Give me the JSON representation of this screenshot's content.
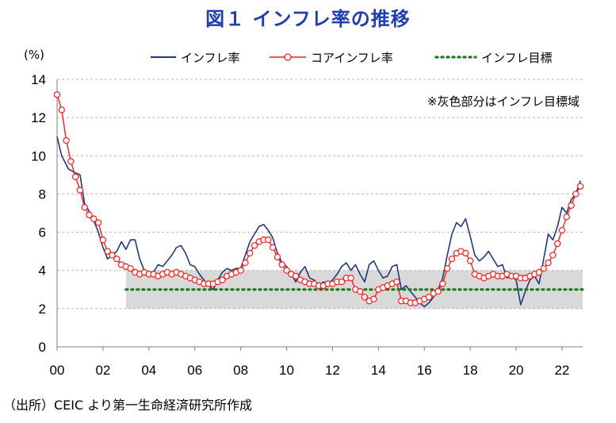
{
  "title": "図１ インフレ率の推移",
  "unit": "(%)",
  "source": "（出所）CEIC より第一生命経済研究所作成",
  "note": "※灰色部分はインフレ目標域",
  "colors": {
    "headline": "#1f3a7a",
    "core": "#ff1a1a",
    "target": "#1a7a1a",
    "band": "#d9d9d9",
    "title": "#1f3fb0"
  },
  "chart_data": {
    "type": "line",
    "x_unit": "year",
    "xlim": [
      2000,
      2022.9
    ],
    "ylim": [
      0,
      14
    ],
    "yticks": [
      0,
      2,
      4,
      6,
      8,
      10,
      12,
      14
    ],
    "xtick_labels": [
      "00",
      "02",
      "04",
      "06",
      "08",
      "10",
      "12",
      "14",
      "16",
      "18",
      "20",
      "22"
    ],
    "xtick_values": [
      2000,
      2002,
      2004,
      2006,
      2008,
      2010,
      2012,
      2014,
      2016,
      2018,
      2020,
      2022
    ],
    "target_band": {
      "from": 2003,
      "to": 2022.9,
      "low": 2,
      "high": 4
    },
    "series": [
      {
        "name": "インフレ率",
        "style": "line",
        "points": [
          [
            2000.0,
            11.0
          ],
          [
            2000.2,
            10.0
          ],
          [
            2000.5,
            9.3
          ],
          [
            2000.8,
            9.1
          ],
          [
            2001.0,
            9.0
          ],
          [
            2001.2,
            7.5
          ],
          [
            2001.4,
            7.1
          ],
          [
            2001.6,
            6.6
          ],
          [
            2001.8,
            6.0
          ],
          [
            2002.0,
            5.2
          ],
          [
            2002.2,
            4.6
          ],
          [
            2002.4,
            4.8
          ],
          [
            2002.6,
            5.0
          ],
          [
            2002.8,
            5.5
          ],
          [
            2003.0,
            5.1
          ],
          [
            2003.2,
            5.6
          ],
          [
            2003.4,
            5.6
          ],
          [
            2003.6,
            4.6
          ],
          [
            2003.8,
            4.0
          ],
          [
            2004.0,
            3.9
          ],
          [
            2004.2,
            3.9
          ],
          [
            2004.4,
            4.3
          ],
          [
            2004.6,
            4.2
          ],
          [
            2004.8,
            4.5
          ],
          [
            2005.0,
            4.8
          ],
          [
            2005.2,
            5.2
          ],
          [
            2005.4,
            5.3
          ],
          [
            2005.6,
            4.9
          ],
          [
            2005.8,
            4.3
          ],
          [
            2006.0,
            4.2
          ],
          [
            2006.2,
            3.8
          ],
          [
            2006.4,
            3.5
          ],
          [
            2006.6,
            3.2
          ],
          [
            2006.8,
            3.0
          ],
          [
            2007.0,
            3.5
          ],
          [
            2007.2,
            3.9
          ],
          [
            2007.4,
            4.1
          ],
          [
            2007.6,
            4.0
          ],
          [
            2007.8,
            4.1
          ],
          [
            2008.0,
            4.1
          ],
          [
            2008.2,
            4.8
          ],
          [
            2008.4,
            5.5
          ],
          [
            2008.6,
            5.9
          ],
          [
            2008.8,
            6.3
          ],
          [
            2009.0,
            6.4
          ],
          [
            2009.2,
            6.1
          ],
          [
            2009.4,
            5.7
          ],
          [
            2009.6,
            4.9
          ],
          [
            2009.8,
            4.4
          ],
          [
            2010.0,
            4.2
          ],
          [
            2010.2,
            3.8
          ],
          [
            2010.4,
            3.4
          ],
          [
            2010.6,
            3.9
          ],
          [
            2010.8,
            4.2
          ],
          [
            2011.0,
            3.6
          ],
          [
            2011.2,
            3.5
          ],
          [
            2011.4,
            3.2
          ],
          [
            2011.6,
            3.4
          ],
          [
            2011.8,
            3.3
          ],
          [
            2012.0,
            3.5
          ],
          [
            2012.2,
            3.8
          ],
          [
            2012.4,
            4.2
          ],
          [
            2012.6,
            4.4
          ],
          [
            2012.8,
            4.0
          ],
          [
            2013.0,
            4.3
          ],
          [
            2013.2,
            3.8
          ],
          [
            2013.4,
            3.4
          ],
          [
            2013.6,
            4.3
          ],
          [
            2013.8,
            4.5
          ],
          [
            2014.0,
            4.0
          ],
          [
            2014.2,
            3.6
          ],
          [
            2014.4,
            3.7
          ],
          [
            2014.6,
            4.2
          ],
          [
            2014.8,
            4.3
          ],
          [
            2015.0,
            3.0
          ],
          [
            2015.2,
            3.2
          ],
          [
            2015.4,
            2.9
          ],
          [
            2015.6,
            2.6
          ],
          [
            2015.8,
            2.3
          ],
          [
            2016.0,
            2.1
          ],
          [
            2016.2,
            2.3
          ],
          [
            2016.4,
            2.6
          ],
          [
            2016.6,
            3.0
          ],
          [
            2016.8,
            3.6
          ],
          [
            2017.0,
            4.8
          ],
          [
            2017.2,
            5.9
          ],
          [
            2017.4,
            6.5
          ],
          [
            2017.6,
            6.3
          ],
          [
            2017.8,
            6.7
          ],
          [
            2018.0,
            5.8
          ],
          [
            2018.2,
            4.8
          ],
          [
            2018.4,
            4.5
          ],
          [
            2018.6,
            4.7
          ],
          [
            2018.8,
            5.0
          ],
          [
            2019.0,
            4.6
          ],
          [
            2019.2,
            4.2
          ],
          [
            2019.4,
            4.3
          ],
          [
            2019.6,
            3.6
          ],
          [
            2019.8,
            3.7
          ],
          [
            2020.0,
            3.5
          ],
          [
            2020.2,
            2.2
          ],
          [
            2020.4,
            2.9
          ],
          [
            2020.6,
            3.5
          ],
          [
            2020.8,
            3.7
          ],
          [
            2021.0,
            3.3
          ],
          [
            2021.2,
            4.6
          ],
          [
            2021.4,
            5.9
          ],
          [
            2021.6,
            5.6
          ],
          [
            2021.8,
            6.3
          ],
          [
            2022.0,
            7.3
          ],
          [
            2022.2,
            7.0
          ],
          [
            2022.4,
            7.7
          ],
          [
            2022.6,
            8.0
          ],
          [
            2022.8,
            8.7
          ]
        ]
      },
      {
        "name": "コアインフレ率",
        "style": "line-circle",
        "points": [
          [
            2000.0,
            13.2
          ],
          [
            2000.2,
            12.4
          ],
          [
            2000.4,
            10.8
          ],
          [
            2000.6,
            9.7
          ],
          [
            2000.8,
            8.9
          ],
          [
            2001.0,
            8.2
          ],
          [
            2001.2,
            7.3
          ],
          [
            2001.4,
            6.9
          ],
          [
            2001.6,
            6.7
          ],
          [
            2001.8,
            6.5
          ],
          [
            2002.0,
            5.6
          ],
          [
            2002.2,
            5.0
          ],
          [
            2002.4,
            4.8
          ],
          [
            2002.6,
            4.6
          ],
          [
            2002.8,
            4.3
          ],
          [
            2003.0,
            4.2
          ],
          [
            2003.2,
            4.1
          ],
          [
            2003.4,
            3.9
          ],
          [
            2003.6,
            3.8
          ],
          [
            2003.8,
            3.9
          ],
          [
            2004.0,
            3.8
          ],
          [
            2004.2,
            3.8
          ],
          [
            2004.4,
            3.7
          ],
          [
            2004.6,
            3.8
          ],
          [
            2004.8,
            3.9
          ],
          [
            2005.0,
            3.8
          ],
          [
            2005.2,
            3.9
          ],
          [
            2005.4,
            3.8
          ],
          [
            2005.6,
            3.7
          ],
          [
            2005.8,
            3.6
          ],
          [
            2006.0,
            3.5
          ],
          [
            2006.2,
            3.4
          ],
          [
            2006.4,
            3.3
          ],
          [
            2006.6,
            3.3
          ],
          [
            2006.8,
            3.3
          ],
          [
            2007.0,
            3.4
          ],
          [
            2007.2,
            3.5
          ],
          [
            2007.4,
            3.7
          ],
          [
            2007.6,
            3.8
          ],
          [
            2007.8,
            3.9
          ],
          [
            2008.0,
            4.0
          ],
          [
            2008.2,
            4.4
          ],
          [
            2008.4,
            4.9
          ],
          [
            2008.6,
            5.3
          ],
          [
            2008.8,
            5.5
          ],
          [
            2009.0,
            5.6
          ],
          [
            2009.2,
            5.6
          ],
          [
            2009.4,
            5.2
          ],
          [
            2009.6,
            4.7
          ],
          [
            2009.8,
            4.3
          ],
          [
            2010.0,
            4.0
          ],
          [
            2010.2,
            3.8
          ],
          [
            2010.4,
            3.7
          ],
          [
            2010.6,
            3.5
          ],
          [
            2010.8,
            3.4
          ],
          [
            2011.0,
            3.3
          ],
          [
            2011.2,
            3.3
          ],
          [
            2011.4,
            3.2
          ],
          [
            2011.6,
            3.2
          ],
          [
            2011.8,
            3.3
          ],
          [
            2012.0,
            3.3
          ],
          [
            2012.2,
            3.4
          ],
          [
            2012.4,
            3.4
          ],
          [
            2012.6,
            3.6
          ],
          [
            2012.8,
            3.6
          ],
          [
            2013.0,
            3.0
          ],
          [
            2013.2,
            2.9
          ],
          [
            2013.4,
            2.6
          ],
          [
            2013.6,
            2.4
          ],
          [
            2013.8,
            2.5
          ],
          [
            2014.0,
            3.0
          ],
          [
            2014.2,
            3.1
          ],
          [
            2014.4,
            3.2
          ],
          [
            2014.6,
            3.3
          ],
          [
            2014.8,
            3.4
          ],
          [
            2015.0,
            2.4
          ],
          [
            2015.2,
            2.4
          ],
          [
            2015.4,
            2.3
          ],
          [
            2015.6,
            2.3
          ],
          [
            2015.8,
            2.4
          ],
          [
            2016.0,
            2.5
          ],
          [
            2016.2,
            2.6
          ],
          [
            2016.4,
            2.8
          ],
          [
            2016.6,
            2.9
          ],
          [
            2016.8,
            3.3
          ],
          [
            2017.0,
            4.1
          ],
          [
            2017.2,
            4.6
          ],
          [
            2017.4,
            4.9
          ],
          [
            2017.6,
            5.0
          ],
          [
            2017.8,
            4.9
          ],
          [
            2018.0,
            4.5
          ],
          [
            2018.2,
            3.8
          ],
          [
            2018.4,
            3.7
          ],
          [
            2018.6,
            3.6
          ],
          [
            2018.8,
            3.7
          ],
          [
            2019.0,
            3.8
          ],
          [
            2019.2,
            3.7
          ],
          [
            2019.4,
            3.7
          ],
          [
            2019.6,
            3.8
          ],
          [
            2019.8,
            3.7
          ],
          [
            2020.0,
            3.7
          ],
          [
            2020.2,
            3.6
          ],
          [
            2020.4,
            3.6
          ],
          [
            2020.6,
            3.7
          ],
          [
            2020.8,
            3.8
          ],
          [
            2021.0,
            3.9
          ],
          [
            2021.2,
            4.1
          ],
          [
            2021.4,
            4.4
          ],
          [
            2021.6,
            4.8
          ],
          [
            2021.8,
            5.4
          ],
          [
            2022.0,
            6.1
          ],
          [
            2022.2,
            6.8
          ],
          [
            2022.4,
            7.4
          ],
          [
            2022.6,
            8.0
          ],
          [
            2022.8,
            8.4
          ]
        ]
      },
      {
        "name": "インフレ目標",
        "style": "dotted",
        "points": [
          [
            2003.0,
            3.0
          ],
          [
            2022.9,
            3.0
          ]
        ]
      }
    ]
  }
}
